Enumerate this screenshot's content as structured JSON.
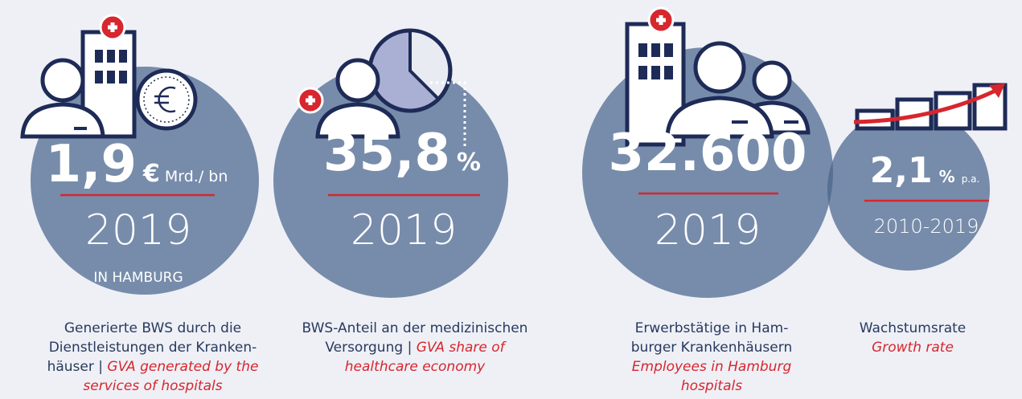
{
  "items": [
    {
      "value": "1,9",
      "unit": "€",
      "suffix": "Mrd./ bn",
      "year": "2019",
      "note": "IN HAMBURG",
      "german": "Generierte BWS durch die Dienstleistungen der Kranken­häuser",
      "separator": "|",
      "english": "GVA generated by the services of hospitals"
    },
    {
      "value": "35,8",
      "unit": "%",
      "year": "2019",
      "german": "BWS-Anteil an der medizini­schen Versorgung",
      "separator": "|",
      "english": "GVA share of healthcare economy"
    },
    {
      "value": "32.600",
      "year": "2019",
      "german": "Erwerbstätige in Ham­burger Krankenhäusern",
      "english": "Employees in Hamburg hospitals"
    },
    {
      "value": "2,1",
      "unit": "%",
      "suffix": "p.a.",
      "year": "2010-2019",
      "german": "Wachstumsrate",
      "english": "Growth rate"
    }
  ]
}
